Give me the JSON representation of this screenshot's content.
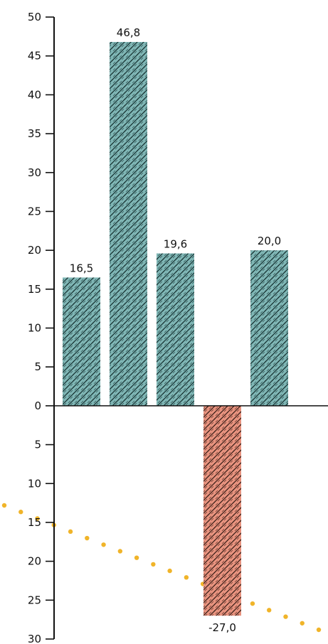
{
  "chart_data": {
    "type": "bar",
    "categories": [
      "",
      "",
      "",
      "",
      ""
    ],
    "values": [
      16.5,
      46.8,
      19.6,
      -27.0,
      20.0
    ],
    "value_labels": [
      "16,5",
      "46,8",
      "19,6",
      "-27,0",
      "20,0"
    ],
    "ylim": [
      -30,
      50
    ],
    "yticks": [
      50,
      45,
      40,
      35,
      30,
      25,
      20,
      15,
      10,
      5,
      0,
      -5,
      -10,
      -15,
      -20,
      -25,
      -30
    ],
    "ytick_labels": [
      "50",
      "45",
      "40",
      "35",
      "30",
      "25",
      "20",
      "15",
      "10",
      "5",
      "0",
      "5",
      "10",
      "15",
      "20",
      "25",
      "30"
    ],
    "grid": false,
    "legend": "none",
    "colors": {
      "positive": "#7fb6b5",
      "negative": "#e8937f",
      "decoration": "#f0b429"
    }
  }
}
